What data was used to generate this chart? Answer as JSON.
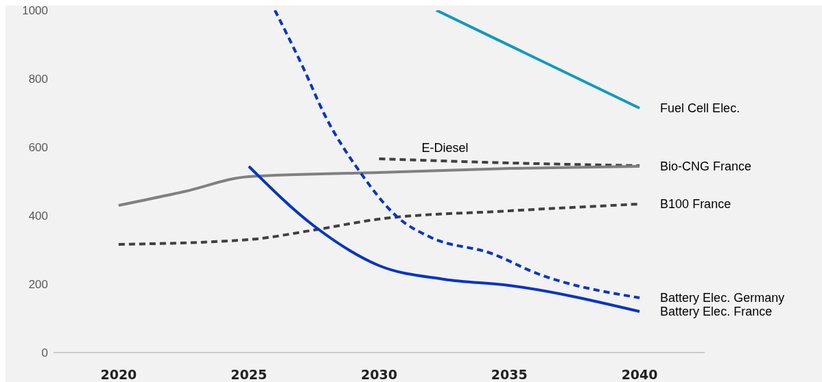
{
  "chart_data": {
    "type": "line",
    "xlim": [
      2017.5,
      2042.5
    ],
    "xticks": [
      2020,
      2025,
      2030,
      2035,
      2040
    ],
    "ylim": [
      0,
      1000
    ],
    "yticks": [
      0,
      200,
      400,
      600,
      800,
      1000
    ],
    "grid": false,
    "legend": false,
    "marker": "none",
    "series": [
      {
        "name": "Fuel Cell Elec.",
        "color": "#0e9ac0",
        "line_style": "solid",
        "x": [
          2032.2,
          2036.1,
          2040
        ],
        "values": [
          1000,
          857,
          714
        ]
      },
      {
        "name": "E-Diesel",
        "color": "#404040",
        "line_style": "dashed",
        "x": [
          2030,
          2035,
          2040
        ],
        "values": [
          566,
          554,
          546
        ]
      },
      {
        "name": "Bio-CNG France",
        "color": "#808080",
        "line_style": "solid",
        "x": [
          2020,
          2022.5,
          2025,
          2030,
          2035,
          2040
        ],
        "values": [
          430,
          470,
          514,
          526,
          538,
          544
        ]
      },
      {
        "name": "B100 France",
        "color": "#404040",
        "line_style": "dashed",
        "x": [
          2020,
          2025,
          2027.5,
          2030,
          2035,
          2040
        ],
        "values": [
          316,
          330,
          358,
          390,
          414,
          434
        ]
      },
      {
        "name": "Battery Elec.  Germany",
        "color": "#0033cc",
        "line_style": "dashed",
        "x": [
          2026,
          2027.1,
          2027.9,
          2029.3,
          2030.7,
          2032,
          2034.3,
          2036.1,
          2040
        ],
        "values": [
          1000,
          830,
          696,
          524,
          396,
          336,
          290,
          230,
          160
        ]
      },
      {
        "name": "Battery Elec. France",
        "color": "#0033cc",
        "line_style": "solid",
        "x": [
          2025,
          2027.5,
          2030,
          2032.5,
          2035,
          2040
        ],
        "values": [
          544,
          370,
          254,
          214,
          196,
          120
        ]
      }
    ]
  }
}
